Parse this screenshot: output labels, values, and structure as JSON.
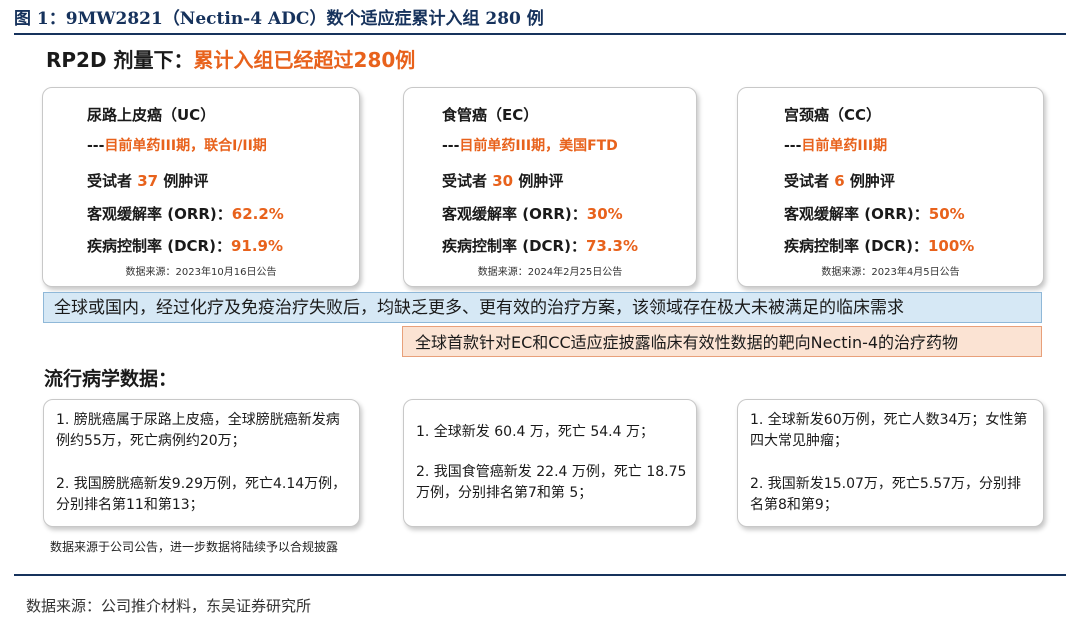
{
  "figure_title": "图 1：9MW2821（Nectin-4 ADC）数个适应症累计入组 280 例",
  "headline": {
    "prefix": "RP2D 剂量下：",
    "highlight": "累计入组已经超过280例"
  },
  "trial_cards": [
    {
      "name": "尿路上皮癌（UC）",
      "phase_dash": "---",
      "phase": "目前单药III期，联合I/II期",
      "enrolled_prefix": "受试者 ",
      "enrolled": "37",
      "enrolled_suffix": " 例肿评",
      "orr_label": "客观缓解率 (ORR)：",
      "orr": "62.2%",
      "dcr_label": "疾病控制率 (DCR)：",
      "dcr": "91.9%",
      "source": "数据来源：2023年10月16日公告"
    },
    {
      "name": "食管癌（EC）",
      "phase_dash": "---",
      "phase": "目前单药III期，美国FTD",
      "enrolled_prefix": "受试者 ",
      "enrolled": "30",
      "enrolled_suffix": " 例肿评",
      "orr_label": "客观缓解率 (ORR)：",
      "orr": "30%",
      "dcr_label": "疾病控制率 (DCR)：",
      "dcr": "73.3%",
      "source": "数据来源：2024年2月25日公告"
    },
    {
      "name": "宫颈癌（CC）",
      "phase_dash": "---",
      "phase": "目前单药III期",
      "enrolled_prefix": "受试者 ",
      "enrolled": "6",
      "enrolled_suffix": " 例肿评",
      "orr_label": "客观缓解率 (ORR)：",
      "orr": "50%",
      "dcr_label": "疾病控制率 (DCR)：",
      "dcr": "100%",
      "source": "数据来源：2023年4月5日公告"
    }
  ],
  "banner_need": "全球或国内，经过化疗及免疫治疗失败后，均缺乏更多、更有效的治疗方案，该领域存在极大未被满足的临床需求",
  "banner_first": "全球首款针对EC和CC适应症披露临床有效性数据的靶向Nectin-4的治疗药物",
  "epi_title": "流行病学数据：",
  "epi_cards": [
    {
      "p1": "1. 膀胱癌属于尿路上皮癌，全球膀胱癌新发病例约55万，死亡病例约20万；",
      "p2": "2. 我国膀胱癌新发9.29万例，死亡4.14万例，分别排名第11和第13；"
    },
    {
      "p1": "1. 全球新发 60.4 万，死亡 54.4 万；",
      "p2": "2. 我国食管癌新发 22.4 万例，死亡 18.75 万例，分别排名第7和第 5；"
    },
    {
      "p1": "1. 全球新发60万例，死亡人数34万；女性第四大常见肿瘤；",
      "p2": "2. 我国新发15.07万，死亡5.57万，分别排名第8和第9；"
    }
  ],
  "footnote": "数据来源于公司公告，进一步数据将陆续予以合规披露",
  "source": "数据来源：公司推介材料，东吴证券研究所",
  "colors": {
    "accent": "#e8621c",
    "title": "#16325c",
    "banner_blue": "#d6e8f5",
    "banner_orange": "#fbe3d3"
  }
}
